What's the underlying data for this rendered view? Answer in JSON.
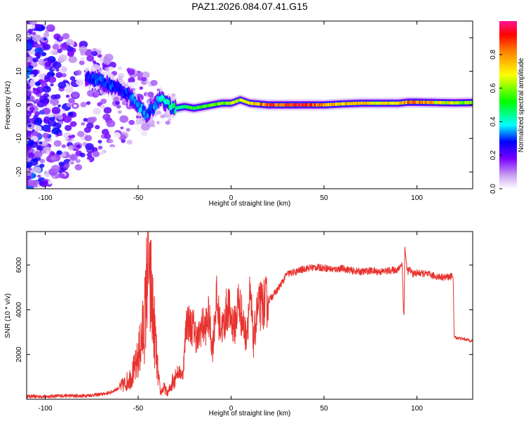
{
  "chart_data": [
    {
      "type": "heatmap",
      "title": "PAZ1.2026.084.07.41.G15",
      "xlabel": "Height of straight line (km)",
      "ylabel": "Frequency (Hz)",
      "xlim": [
        -110,
        130
      ],
      "ylim": [
        -25,
        25
      ],
      "x_ticks": [
        -100,
        -50,
        0,
        50,
        100
      ],
      "y_ticks": [
        -20,
        -10,
        0,
        10,
        20
      ],
      "colorbar": {
        "label": "Normalized spectral amplitude",
        "range": [
          0,
          1
        ],
        "ticks": [
          0.0,
          0.2,
          0.4,
          0.6,
          0.8
        ]
      },
      "ridge": {
        "description": "dominant frequency track vs height",
        "x": [
          -78,
          -72,
          -66,
          -60,
          -55,
          -50,
          -46,
          -42,
          -38,
          -34,
          -30,
          -25,
          -20,
          -15,
          -10,
          -5,
          0,
          5,
          10,
          20,
          30,
          40,
          50,
          60,
          70,
          80,
          90,
          95,
          100,
          110,
          120,
          130
        ],
        "y": [
          8,
          7.5,
          6,
          5,
          3,
          0,
          -3,
          -1,
          2,
          0,
          -1,
          -0.5,
          -1,
          -0.5,
          0,
          0.5,
          0.5,
          1.5,
          0.5,
          0,
          0,
          0,
          0,
          0.3,
          0.5,
          0.5,
          0.5,
          0.8,
          0.8,
          0.7,
          0.6,
          0.7
        ],
        "amplitude": [
          0.25,
          0.3,
          0.3,
          0.25,
          0.3,
          0.35,
          0.3,
          0.3,
          0.4,
          0.45,
          0.45,
          0.5,
          0.5,
          0.55,
          0.55,
          0.6,
          0.6,
          0.65,
          0.7,
          0.85,
          0.9,
          0.85,
          0.8,
          0.75,
          0.75,
          0.7,
          0.7,
          0.8,
          0.85,
          0.7,
          0.65,
          0.6
        ]
      }
    },
    {
      "type": "line",
      "xlabel": "Height of straight line (km)",
      "ylabel": "SNR (10 * v/v)",
      "xlim": [
        -110,
        130
      ],
      "ylim": [
        0,
        7500
      ],
      "x_ticks": [
        -100,
        -50,
        0,
        50,
        100
      ],
      "y_ticks": [
        2000,
        4000,
        6000
      ],
      "series": [
        {
          "name": "SNR",
          "color": "#e8322e",
          "x": [
            -110,
            -100,
            -90,
            -80,
            -70,
            -65,
            -60,
            -57,
            -54,
            -51,
            -49,
            -47,
            -46,
            -45,
            -44.5,
            -44,
            -43,
            -42,
            -41,
            -40,
            -39,
            -38,
            -36,
            -34,
            -32,
            -30,
            -28,
            -26,
            -25,
            -24,
            -22,
            -20,
            -18,
            -16,
            -14,
            -12,
            -10,
            -8,
            -6,
            -4,
            -2,
            0,
            2,
            4,
            6,
            8,
            10,
            11,
            12,
            14,
            16,
            18,
            20,
            22,
            25,
            28,
            30,
            35,
            40,
            45,
            50,
            55,
            60,
            65,
            70,
            75,
            80,
            85,
            90,
            92,
            93,
            93.5,
            94,
            95,
            96,
            98,
            100,
            105,
            110,
            115,
            119.5,
            120,
            121,
            125,
            130
          ],
          "y": [
            130,
            120,
            160,
            150,
            220,
            300,
            520,
            700,
            1000,
            1500,
            2300,
            3200,
            4000,
            6200,
            7400,
            4600,
            5000,
            3600,
            2900,
            1700,
            900,
            300,
            500,
            250,
            700,
            1150,
            1200,
            1100,
            2200,
            3600,
            3300,
            3200,
            2600,
            3300,
            3200,
            3700,
            2200,
            4500,
            3300,
            3200,
            4200,
            3600,
            3300,
            4400,
            3600,
            2800,
            4400,
            3900,
            2500,
            3900,
            4200,
            4300,
            4400,
            4600,
            4900,
            5300,
            5600,
            5700,
            5850,
            5900,
            5880,
            5800,
            5850,
            5750,
            5700,
            5750,
            5700,
            5750,
            5800,
            6100,
            3500,
            6900,
            6300,
            5700,
            5800,
            5600,
            5650,
            5600,
            5500,
            5450,
            5500,
            2800,
            2750,
            2700,
            2600
          ]
        }
      ]
    }
  ]
}
